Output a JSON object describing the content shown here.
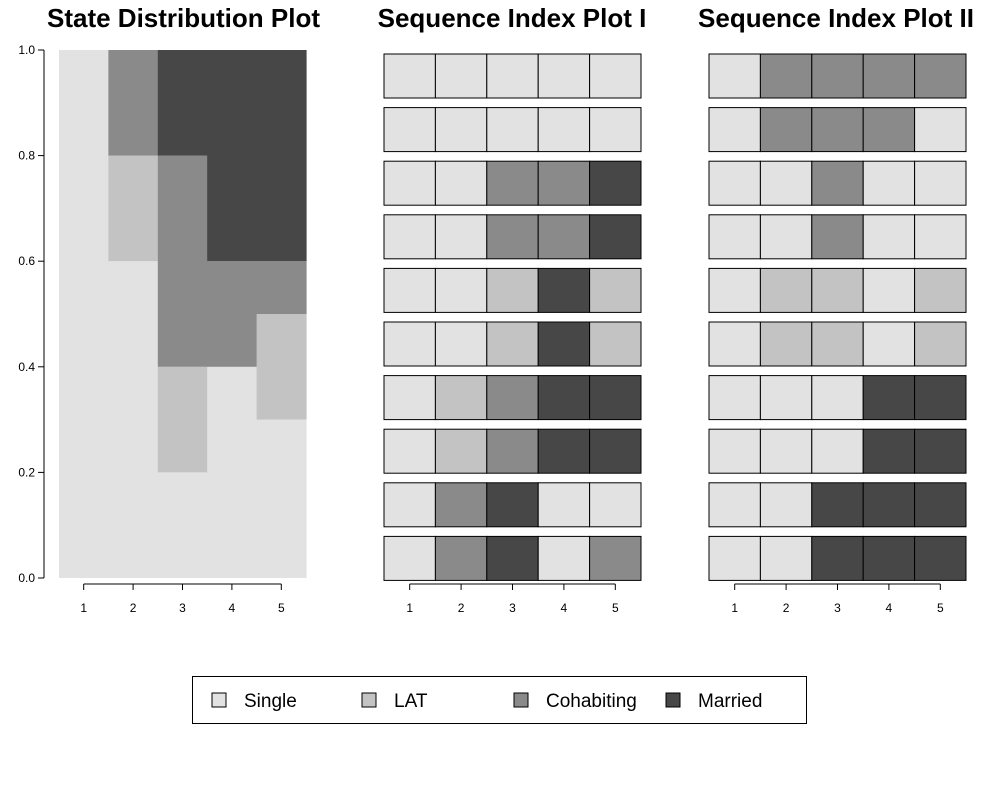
{
  "colors": {
    "Single": "#e2e2e2",
    "LAT": "#c3c3c3",
    "Cohabiting": "#8a8a8a",
    "Married": "#474747"
  },
  "states": [
    "Single",
    "LAT",
    "Cohabiting",
    "Married"
  ],
  "chart_data": [
    {
      "type": "area",
      "title": "State Distribution Plot",
      "categories": [
        "1",
        "2",
        "3",
        "4",
        "5"
      ],
      "ylim": [
        0,
        1
      ],
      "yticks": [
        "0.0",
        "0.2",
        "0.4",
        "0.6",
        "0.8",
        "1.0"
      ],
      "series": [
        {
          "name": "Single",
          "values": [
            1.0,
            0.6,
            0.2,
            0.4,
            0.3
          ]
        },
        {
          "name": "LAT",
          "values": [
            0.0,
            0.2,
            0.2,
            0.0,
            0.2
          ]
        },
        {
          "name": "Cohabiting",
          "values": [
            0.0,
            0.2,
            0.4,
            0.2,
            0.1
          ]
        },
        {
          "name": "Married",
          "values": [
            0.0,
            0.0,
            0.2,
            0.4,
            0.4
          ]
        }
      ]
    },
    {
      "type": "heatmap",
      "title": "Sequence Index Plot I",
      "categories": [
        "1",
        "2",
        "3",
        "4",
        "5"
      ],
      "sequences": [
        [
          "Single",
          "Single",
          "Single",
          "Single",
          "Single"
        ],
        [
          "Single",
          "Single",
          "Single",
          "Single",
          "Single"
        ],
        [
          "Single",
          "Single",
          "Cohabiting",
          "Cohabiting",
          "Married"
        ],
        [
          "Single",
          "Single",
          "Cohabiting",
          "Cohabiting",
          "Married"
        ],
        [
          "Single",
          "Single",
          "LAT",
          "Married",
          "LAT"
        ],
        [
          "Single",
          "Single",
          "LAT",
          "Married",
          "LAT"
        ],
        [
          "Single",
          "LAT",
          "Cohabiting",
          "Married",
          "Married"
        ],
        [
          "Single",
          "LAT",
          "Cohabiting",
          "Married",
          "Married"
        ],
        [
          "Single",
          "Cohabiting",
          "Married",
          "Single",
          "Single"
        ],
        [
          "Single",
          "Cohabiting",
          "Married",
          "Single",
          "Cohabiting"
        ]
      ]
    },
    {
      "type": "heatmap",
      "title": "Sequence Index Plot II",
      "categories": [
        "1",
        "2",
        "3",
        "4",
        "5"
      ],
      "sequences": [
        [
          "Single",
          "Cohabiting",
          "Cohabiting",
          "Cohabiting",
          "Cohabiting"
        ],
        [
          "Single",
          "Cohabiting",
          "Cohabiting",
          "Cohabiting",
          "Single"
        ],
        [
          "Single",
          "Single",
          "Cohabiting",
          "Single",
          "Single"
        ],
        [
          "Single",
          "Single",
          "Cohabiting",
          "Single",
          "Single"
        ],
        [
          "Single",
          "LAT",
          "LAT",
          "Single",
          "LAT"
        ],
        [
          "Single",
          "LAT",
          "LAT",
          "Single",
          "LAT"
        ],
        [
          "Single",
          "Single",
          "Single",
          "Married",
          "Married"
        ],
        [
          "Single",
          "Single",
          "Single",
          "Married",
          "Married"
        ],
        [
          "Single",
          "Single",
          "Married",
          "Married",
          "Married"
        ],
        [
          "Single",
          "Single",
          "Married",
          "Married",
          "Married"
        ]
      ]
    }
  ],
  "legend": {
    "entries": [
      "Single",
      "LAT",
      "Cohabiting",
      "Married"
    ]
  }
}
